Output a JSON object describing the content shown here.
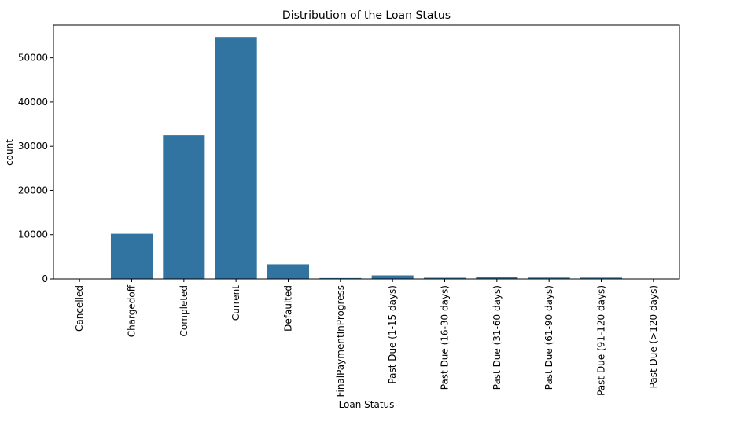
{
  "chart_data": {
    "type": "bar",
    "title": "Distribution of the Loan Status",
    "xlabel": "Loan Status",
    "ylabel": "count",
    "categories": [
      "Cancelled",
      "Chargedoff",
      "Completed",
      "Current",
      "Defaulted",
      "FinalPaymentInProgress",
      "Past Due (1-15 days)",
      "Past Due (16-30 days)",
      "Past Due (31-60 days)",
      "Past Due (61-90 days)",
      "Past Due (91-120 days)",
      "Past Due (>120 days)"
    ],
    "values": [
      5,
      10200,
      32500,
      54700,
      3300,
      200,
      800,
      270,
      360,
      310,
      300,
      15
    ],
    "ylim": [
      0,
      57400
    ],
    "yticks": [
      0,
      10000,
      20000,
      30000,
      40000,
      50000
    ],
    "grid": false,
    "bar_color": "#3274a1"
  }
}
